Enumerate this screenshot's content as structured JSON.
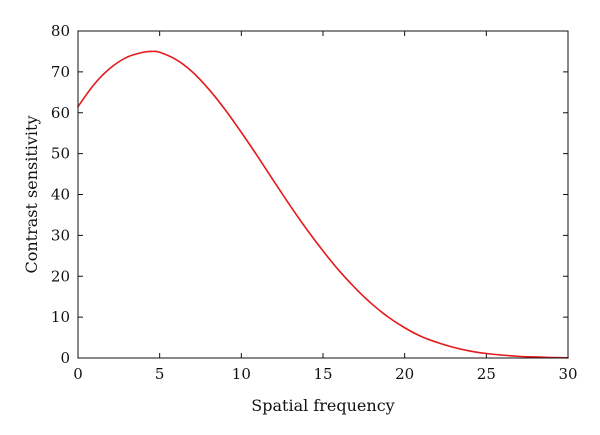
{
  "chart_data": {
    "type": "line",
    "title": "",
    "xlabel": "Spatial frequency",
    "ylabel": "Contrast sensitivity",
    "xlim": [
      0,
      30
    ],
    "ylim": [
      0,
      80
    ],
    "xticks": [
      0,
      5,
      10,
      15,
      20,
      25,
      30
    ],
    "yticks": [
      0,
      10,
      20,
      30,
      40,
      50,
      60,
      70,
      80
    ],
    "grid": false,
    "series": [
      {
        "color": "#e41a1c",
        "x": [
          0,
          1,
          2,
          3,
          4,
          4.5,
          5,
          6,
          7,
          8,
          9,
          10,
          11,
          12,
          13,
          14,
          15,
          16,
          17,
          18,
          19,
          20,
          21,
          22,
          23,
          24,
          25,
          26,
          27,
          28,
          29,
          30
        ],
        "y": [
          61.5,
          67,
          71,
          73.6,
          74.8,
          75,
          74.8,
          73,
          70,
          65.8,
          60.8,
          55.2,
          49.3,
          43.2,
          37.2,
          31.5,
          26.2,
          21.3,
          17,
          13.2,
          10,
          7.4,
          5.3,
          3.8,
          2.6,
          1.7,
          1.1,
          0.7,
          0.4,
          0.25,
          0.12,
          0.05
        ]
      }
    ]
  }
}
